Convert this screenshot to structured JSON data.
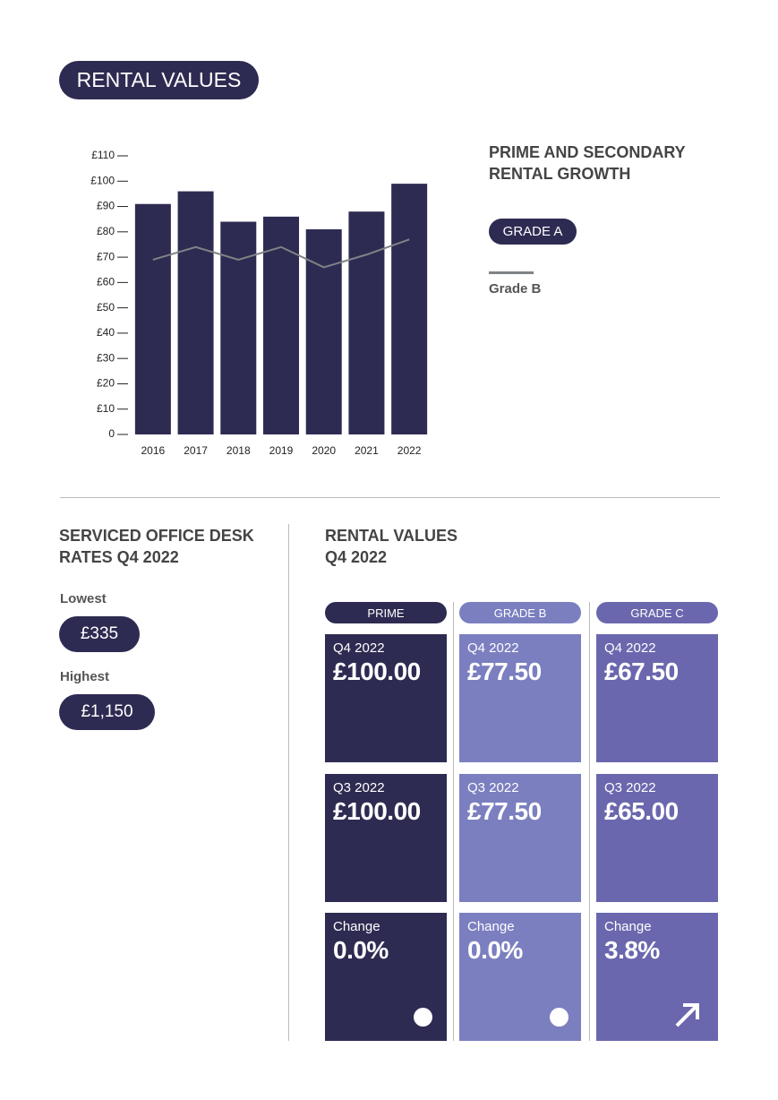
{
  "header": {
    "title": "RENTAL VALUES"
  },
  "chart_data": {
    "type": "bar",
    "title": "PRIME AND SECONDARY RENTAL GROWTH",
    "categories": [
      "2016",
      "2017",
      "2018",
      "2019",
      "2020",
      "2021",
      "2022"
    ],
    "series": [
      {
        "name": "GRADE A",
        "type": "bar",
        "color": "#2e2b52",
        "values": [
          91,
          96,
          84,
          86,
          81,
          88,
          99
        ]
      },
      {
        "name": "Grade B",
        "type": "line",
        "color": "#7f8385",
        "values": [
          69,
          74,
          69,
          74,
          66,
          71,
          77
        ]
      }
    ],
    "ylim": [
      0,
      110
    ],
    "yticks": [
      0,
      {
        "value": 10,
        "label": "£10"
      },
      {
        "value": 20,
        "label": "£20"
      },
      {
        "value": 30,
        "label": "£30"
      },
      {
        "value": 40,
        "label": "£40"
      },
      {
        "value": 50,
        "label": "£50"
      },
      {
        "value": 60,
        "label": "£60"
      },
      {
        "value": 70,
        "label": "£70"
      },
      {
        "value": 80,
        "label": "£80"
      },
      {
        "value": 90,
        "label": "£90"
      },
      {
        "value": 100,
        "label": "£100"
      },
      {
        "value": 110,
        "label": "£110"
      }
    ]
  },
  "serviced_office": {
    "title": "SERVICED OFFICE DESK RATES Q4 2022",
    "items": [
      {
        "label": "Lowest",
        "value": "£335"
      },
      {
        "label": "Highest",
        "value": "£1,150"
      }
    ]
  },
  "rental_values": {
    "title": "RENTAL VALUES Q4 2022",
    "columns": [
      {
        "header": "PRIME",
        "color": "#2e2b52",
        "tiles": [
          {
            "label": "Q4 2022",
            "value": "£100.00"
          },
          {
            "label": "Q3 2022",
            "value": "£100.00"
          },
          {
            "label": "Change",
            "value": "0.0%"
          }
        ]
      },
      {
        "header": "GRADE B",
        "color": "#7b7fc0",
        "tiles": [
          {
            "label": "Q4 2022",
            "value": "£77.50"
          },
          {
            "label": "Q3 2022",
            "value": "£77.50"
          },
          {
            "label": "Change",
            "value": "0.0%"
          }
        ]
      },
      {
        "header": "GRADE C",
        "color": "#6a67ae",
        "tiles": [
          {
            "label": "Q4 2022",
            "value": "£67.50"
          },
          {
            "label": "Q3 2022",
            "value": "£65.00"
          },
          {
            "label": "Change",
            "value": "3.8%"
          }
        ]
      }
    ]
  }
}
